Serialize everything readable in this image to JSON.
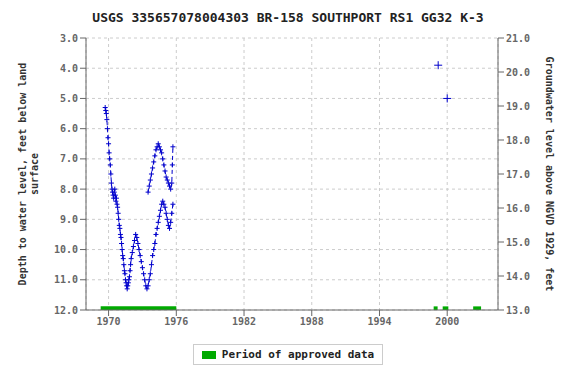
{
  "chart_data": {
    "type": "line",
    "title": "USGS 335657078004303 BR-158 SOUTHPORT RS1 GG32 K-3",
    "y_label": "Depth to water level, feet below land\nsurface",
    "y2_label": "Groundwater level above NGVD 1929, feet",
    "xlim": [
      1968.0,
      2004.5
    ],
    "xticks": [
      1970,
      1976,
      1982,
      1988,
      1994,
      2000
    ],
    "ylim": [
      12.0,
      3.0
    ],
    "yticks": [
      {
        "value": 3.0,
        "label": "3.0"
      },
      {
        "value": 4.0,
        "label": "4.0"
      },
      {
        "value": 5.0,
        "label": "5.0"
      },
      {
        "value": 6.0,
        "label": "6.0"
      },
      {
        "value": 7.0,
        "label": "7.0"
      },
      {
        "value": 8.0,
        "label": "8.0"
      },
      {
        "value": 9.0,
        "label": "9.0"
      },
      {
        "value": 10.0,
        "label": "10.0"
      },
      {
        "value": 11.0,
        "label": "11.0"
      },
      {
        "value": 12.0,
        "label": "12.0"
      }
    ],
    "y2lim": [
      13.0,
      21.0
    ],
    "y2ticks": [
      {
        "value": 13.0,
        "label": "13.0"
      },
      {
        "value": 14.0,
        "label": "14.0"
      },
      {
        "value": 15.0,
        "label": "15.0"
      },
      {
        "value": 16.0,
        "label": "16.0"
      },
      {
        "value": 17.0,
        "label": "17.0"
      },
      {
        "value": 18.0,
        "label": "18.0"
      },
      {
        "value": 19.0,
        "label": "19.0"
      },
      {
        "value": 20.0,
        "label": "20.0"
      },
      {
        "value": 21.0,
        "label": "21.0"
      }
    ],
    "grid": true,
    "series": [
      {
        "color": "#0000cc",
        "line_style": "dashed",
        "marker": "plus",
        "x": [
          1969.7,
          1969.75,
          1969.8,
          1969.85,
          1969.9,
          1969.95,
          1970.0,
          1970.05,
          1970.1,
          1970.15,
          1970.2,
          1970.25,
          1970.3,
          1970.35,
          1970.4,
          1970.45,
          1970.5,
          1970.55,
          1970.6,
          1970.65,
          1970.7,
          1970.75,
          1970.8,
          1970.85,
          1970.9,
          1970.95,
          1971.0,
          1971.05,
          1971.1,
          1971.15,
          1971.2,
          1971.25,
          1971.3,
          1971.35,
          1971.4,
          1971.45,
          1971.5,
          1971.55,
          1971.6,
          1971.65,
          1971.7,
          1971.75,
          1971.8,
          1971.85,
          1971.9,
          1971.95,
          1972.0,
          1972.1,
          1972.2,
          1972.3,
          1972.4,
          1972.5,
          1972.6,
          1972.7,
          1972.8,
          1972.9,
          1973.0,
          1973.1,
          1973.2,
          1973.3,
          1973.4,
          1973.5,
          1973.6,
          1973.7,
          1973.8,
          1973.9,
          1974.0,
          1974.1,
          1974.2,
          1974.3,
          1974.4,
          1974.5,
          1974.6,
          1974.7,
          1974.8,
          1974.9,
          1975.0,
          1975.1,
          1975.2,
          1975.3,
          1975.4,
          1975.5,
          1975.6,
          1975.7
        ],
        "values": [
          5.3,
          5.4,
          5.5,
          5.7,
          6.0,
          6.3,
          6.5,
          6.8,
          7.0,
          7.2,
          7.5,
          7.8,
          8.0,
          8.1,
          8.2,
          8.3,
          8.1,
          8.0,
          8.2,
          8.4,
          8.3,
          8.5,
          8.6,
          8.8,
          9.0,
          9.2,
          9.3,
          9.5,
          9.6,
          9.8,
          10.0,
          10.2,
          10.3,
          10.5,
          10.7,
          10.8,
          11.0,
          11.1,
          11.2,
          11.3,
          11.2,
          11.1,
          11.0,
          10.9,
          10.7,
          10.5,
          10.3,
          10.1,
          9.9,
          9.7,
          9.5,
          9.6,
          9.8,
          10.0,
          10.2,
          10.4,
          10.6,
          10.8,
          11.0,
          11.2,
          11.3,
          11.2,
          11.0,
          10.8,
          10.5,
          10.2,
          10.0,
          9.8,
          9.5,
          9.3,
          9.1,
          8.9,
          8.7,
          8.5,
          8.4,
          8.5,
          8.6,
          8.8,
          9.0,
          9.2,
          9.3,
          9.1,
          8.8,
          8.5
        ]
      },
      {
        "color": "#0000cc",
        "line_style": "dashed",
        "marker": "plus",
        "x": [
          1973.5,
          1973.6,
          1973.7,
          1973.8,
          1973.9,
          1974.0,
          1974.1,
          1974.2,
          1974.3,
          1974.4,
          1974.5,
          1974.6,
          1974.7,
          1974.8,
          1974.9,
          1975.0,
          1975.1,
          1975.2,
          1975.3,
          1975.4,
          1975.5,
          1975.6,
          1975.65,
          1975.7
        ],
        "values": [
          8.1,
          7.9,
          7.7,
          7.5,
          7.3,
          7.1,
          6.9,
          6.7,
          6.6,
          6.5,
          6.6,
          6.7,
          6.8,
          7.0,
          7.2,
          7.4,
          7.6,
          7.7,
          7.8,
          7.9,
          8.0,
          7.8,
          7.2,
          6.6
        ]
      },
      {
        "color": "#0000cc",
        "line_style": "none",
        "marker": "plus",
        "x": [
          1999.2,
          2000.0
        ],
        "values": [
          3.9,
          5.0
        ]
      }
    ],
    "approved_periods": {
      "name": "Period of approved data",
      "color": "#00aa00",
      "y": [
        11.88,
        12.0
      ],
      "segments": [
        [
          1969.3,
          1976.0
        ],
        [
          1998.8,
          1999.15
        ],
        [
          1999.6,
          2000.1
        ],
        [
          2002.3,
          2003.0
        ]
      ]
    }
  }
}
